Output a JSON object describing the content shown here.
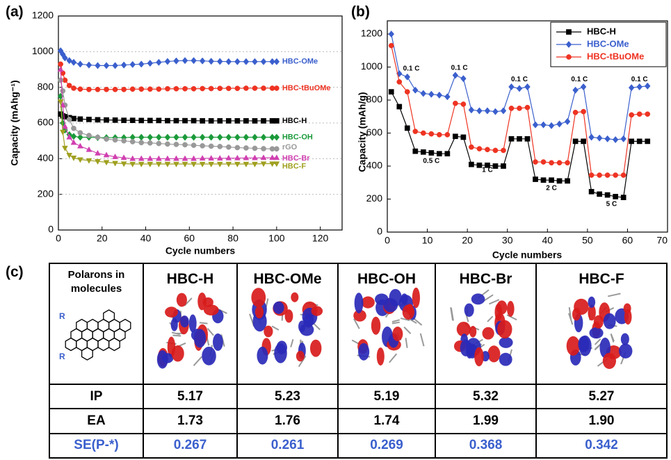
{
  "chart_data": [
    {
      "type": "line",
      "label": "(a)",
      "x_label": "Cycle numbers",
      "y_label": "Capacity (mAhg⁻¹)",
      "x": [
        1,
        2,
        3,
        5,
        7,
        10,
        14,
        18,
        22,
        26,
        30,
        34,
        38,
        42,
        46,
        50,
        54,
        58,
        62,
        66,
        70,
        74,
        78,
        82,
        86,
        90,
        94,
        98,
        100
      ],
      "xlim": [
        0,
        130
      ],
      "xticks": [
        0,
        20,
        40,
        60,
        80,
        100,
        120
      ],
      "ylim": [
        0,
        1200
      ],
      "yticks": [
        0,
        200,
        400,
        600,
        800,
        1000,
        1200
      ],
      "grid": true,
      "series": [
        {
          "name": "HBC-OMe",
          "color": "#3a5fcd",
          "marker": "diamond",
          "values": [
            1005,
            985,
            965,
            950,
            940,
            930,
            925,
            922,
            922,
            922,
            925,
            928,
            930,
            935,
            940,
            945,
            948,
            950,
            950,
            948,
            946,
            945,
            944,
            944,
            944,
            944,
            944,
            944,
            944
          ]
        },
        {
          "name": "HBC-tBuOMe",
          "color": "#ee3322",
          "marker": "circle",
          "values": [
            930,
            880,
            840,
            810,
            795,
            790,
            788,
            788,
            788,
            788,
            788,
            790,
            790,
            790,
            790,
            792,
            792,
            792,
            792,
            793,
            793,
            794,
            794,
            794,
            795,
            795,
            795,
            795,
            795
          ]
        },
        {
          "name": "HBC-H",
          "color": "#000000",
          "marker": "square",
          "values": [
            650,
            640,
            635,
            630,
            625,
            622,
            620,
            618,
            617,
            616,
            615,
            615,
            614,
            614,
            614,
            613,
            613,
            613,
            613,
            612,
            612,
            612,
            612,
            612,
            612,
            612,
            612,
            612,
            612
          ]
        },
        {
          "name": "HBC-OH",
          "color": "#1a9a3a",
          "marker": "diamond",
          "values": [
            750,
            600,
            560,
            535,
            525,
            520,
            520,
            518,
            518,
            518,
            518,
            520,
            520,
            520,
            520,
            520,
            520,
            520,
            520,
            520,
            520,
            520,
            520,
            520,
            520,
            520,
            520,
            520,
            520
          ]
        },
        {
          "name": "rGO",
          "color": "#999999",
          "marker": "circle",
          "values": [
            840,
            780,
            700,
            620,
            570,
            545,
            530,
            520,
            510,
            505,
            500,
            495,
            490,
            488,
            485,
            482,
            480,
            478,
            475,
            472,
            470,
            468,
            465,
            462,
            460,
            458,
            456,
            455,
            455
          ]
        },
        {
          "name": "HBC-Br",
          "color": "#d040b0",
          "marker": "triangle",
          "values": [
            900,
            700,
            580,
            520,
            490,
            470,
            450,
            430,
            420,
            410,
            405,
            400,
            400,
            400,
            400,
            400,
            400,
            400,
            400,
            402,
            402,
            402,
            403,
            403,
            404,
            404,
            405,
            405,
            405
          ]
        },
        {
          "name": "HBC-F",
          "color": "#a0a020",
          "marker": "triangle-down",
          "values": [
            720,
            550,
            460,
            420,
            405,
            395,
            390,
            385,
            380,
            375,
            372,
            370,
            370,
            370,
            370,
            370,
            370,
            370,
            370,
            370,
            370,
            370,
            370,
            370,
            370,
            370,
            372,
            372,
            372
          ]
        }
      ]
    },
    {
      "type": "line",
      "label": "(b)",
      "x_label": "Cycle numbers",
      "y_label": "Capacity (mAh/g)",
      "x": [
        1,
        3,
        5,
        7,
        9,
        11,
        13,
        15,
        17,
        19,
        21,
        23,
        25,
        27,
        29,
        31,
        33,
        35,
        37,
        39,
        41,
        43,
        45,
        47,
        49,
        51,
        53,
        55,
        57,
        59,
        61,
        63,
        65
      ],
      "xlim": [
        0,
        70
      ],
      "xticks": [
        0,
        10,
        20,
        30,
        40,
        50,
        60,
        70
      ],
      "ylim": [
        0,
        1280
      ],
      "yticks": [
        0,
        200,
        400,
        600,
        800,
        1000,
        1200
      ],
      "grid": false,
      "legend": "upper right",
      "series": [
        {
          "name": "HBC-H",
          "color": "#000000",
          "marker": "square",
          "values": [
            850,
            760,
            630,
            490,
            485,
            480,
            475,
            475,
            580,
            575,
            410,
            405,
            405,
            400,
            400,
            565,
            565,
            565,
            320,
            315,
            315,
            310,
            310,
            550,
            550,
            245,
            230,
            225,
            215,
            210,
            550,
            550,
            550
          ]
        },
        {
          "name": "HBC-OMe",
          "color": "#3a5fcd",
          "marker": "diamond",
          "values": [
            1200,
            960,
            940,
            860,
            840,
            835,
            830,
            820,
            950,
            930,
            740,
            735,
            735,
            730,
            735,
            880,
            870,
            880,
            650,
            650,
            645,
            655,
            670,
            860,
            880,
            575,
            570,
            565,
            560,
            565,
            875,
            880,
            885
          ]
        },
        {
          "name": "HBC-tBuOMe",
          "color": "#ee3322",
          "marker": "circle",
          "values": [
            1130,
            910,
            850,
            610,
            600,
            595,
            590,
            590,
            780,
            775,
            515,
            505,
            500,
            495,
            495,
            750,
            750,
            755,
            425,
            425,
            420,
            420,
            420,
            725,
            730,
            345,
            345,
            345,
            345,
            345,
            710,
            715,
            715
          ]
        }
      ],
      "annotations": [
        "0.1 C",
        "0.5 C",
        "0.1 C",
        "1 C",
        "0.1 C",
        "2 C",
        "0.1 C",
        "5 C",
        "0.1 C"
      ]
    }
  ],
  "table": {
    "label": "(c)",
    "header": [
      "Polarons in molecules",
      "HBC-H",
      "HBC-OMe",
      "HBC-OH",
      "HBC-Br",
      "HBC-F"
    ],
    "structure_labels": [
      "R",
      "R"
    ],
    "rows": [
      [
        "IP",
        "5.17",
        "5.23",
        "5.19",
        "5.32",
        "5.27"
      ],
      [
        "EA",
        "1.73",
        "1.76",
        "1.74",
        "1.99",
        "1.90"
      ],
      [
        "SE(P-*)",
        "0.267",
        "0.261",
        "0.269",
        "0.368",
        "0.342"
      ]
    ]
  }
}
